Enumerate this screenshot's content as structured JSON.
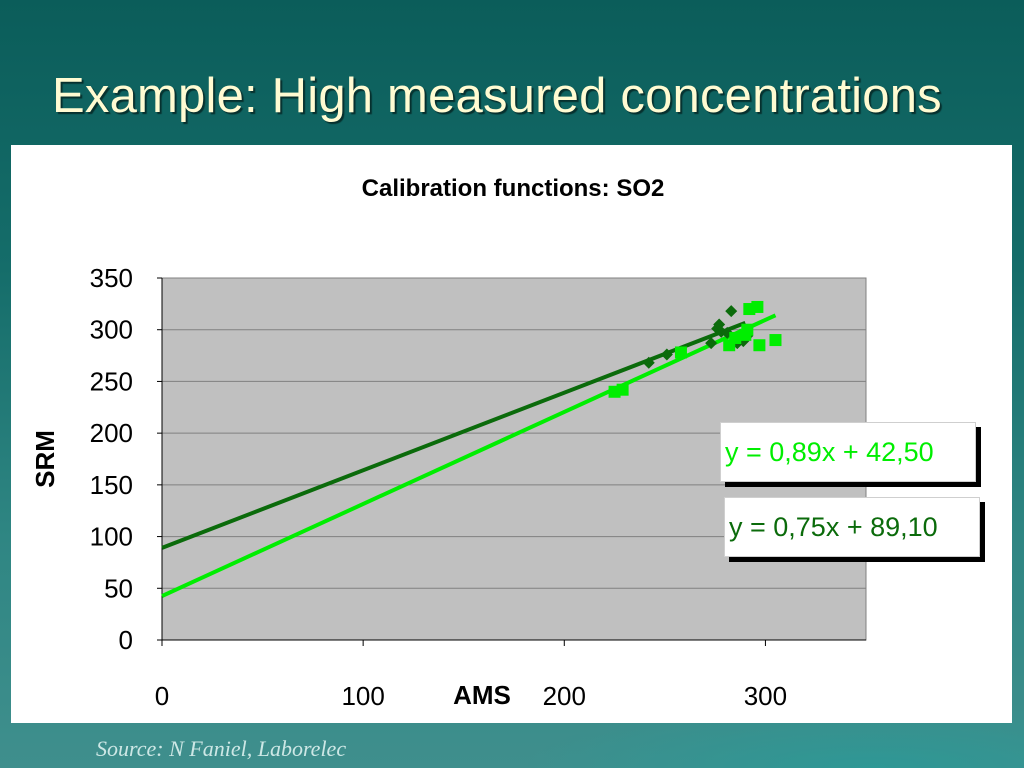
{
  "slide": {
    "title": "Example: High measured concentrations",
    "source": "Source: N Faniel, Laborelec"
  },
  "colors": {
    "background": "#156d6a",
    "title": "#fffbd2",
    "plot_area": "#c0c0c0",
    "series_dark": "#0b6b0b",
    "series_light": "#00ee00"
  },
  "chart_data": {
    "type": "scatter",
    "title": "Calibration functions: SO2",
    "xlabel": "AMS",
    "ylabel": "SRM",
    "xlim": [
      0,
      350
    ],
    "ylim": [
      0,
      350
    ],
    "xticks": [
      0,
      100,
      200,
      300
    ],
    "yticks": [
      0,
      50,
      100,
      150,
      200,
      250,
      300,
      350
    ],
    "grid": "horizontal",
    "series": [
      {
        "marker": "diamond",
        "color": "#0b6b0b",
        "points": [
          [
            242,
            268
          ],
          [
            251,
            276
          ],
          [
            276,
            301
          ],
          [
            278,
            298
          ],
          [
            281,
            297
          ],
          [
            283,
            318
          ],
          [
            286,
            287
          ],
          [
            289,
            289
          ],
          [
            291,
            294
          ],
          [
            277,
            305
          ],
          [
            273,
            287
          ]
        ],
        "trendline": {
          "slope": 0.75,
          "intercept": 89.1,
          "x_range": [
            0,
            290
          ]
        }
      },
      {
        "marker": "square",
        "color": "#00ee00",
        "points": [
          [
            225,
            240
          ],
          [
            229,
            242
          ],
          [
            258,
            278
          ],
          [
            282,
            285
          ],
          [
            285,
            292
          ],
          [
            290,
            295
          ],
          [
            291,
            300
          ],
          [
            292,
            320
          ],
          [
            296,
            322
          ],
          [
            297,
            285
          ],
          [
            305,
            290
          ]
        ],
        "trendline": {
          "slope": 0.89,
          "intercept": 42.5,
          "x_range": [
            0,
            305
          ]
        }
      }
    ],
    "equations": [
      {
        "text": "y = 0,89x + 42,50",
        "color": "#00ee00"
      },
      {
        "text": "y = 0,75x + 89,10",
        "color": "#0b6b0b"
      }
    ]
  }
}
